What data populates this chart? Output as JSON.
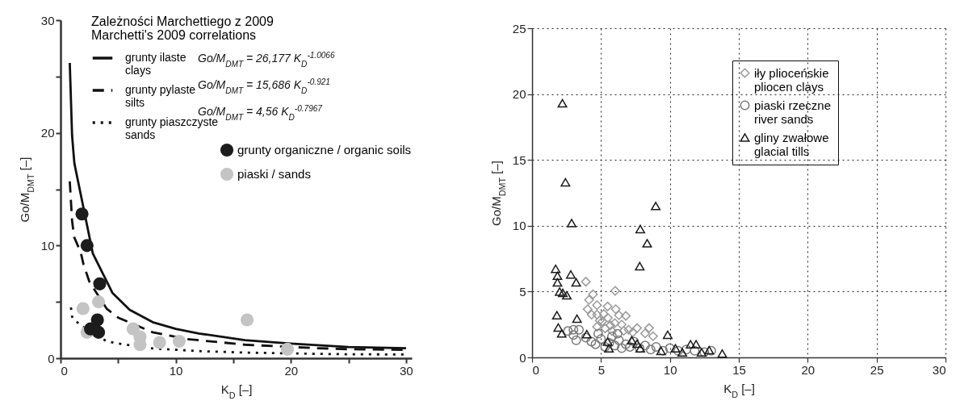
{
  "chart_data": [
    {
      "type": "scatter",
      "xlabel": "K$_{D}$ [–]",
      "ylabel": "Go/M$_{DMT}$ [–]",
      "legend_title": "Zależności Marchettiego z 2009\nMarchetti's 2009 correlations",
      "legend": "top right",
      "xlim": [
        0,
        30.5
      ],
      "ylim": [
        0,
        30
      ],
      "xticks": [
        0,
        {
          "value": 5,
          "label": null
        },
        10,
        {
          "value": 15,
          "label": null
        },
        20,
        {
          "value": 25,
          "label": null
        },
        30
      ],
      "yticks": [
        0,
        {
          "value": 5,
          "label": null
        },
        10,
        {
          "value": 15,
          "label": null
        },
        20,
        {
          "value": 25,
          "label": null
        },
        30
      ],
      "annotations": [
        "Go/M$_{DMT}$ = 26,177 K$_{D}$$^{-1.0066}$",
        "Go/M$_{DMT}$ = 15,686 K$_{D}$$^{-0.921}$",
        "Go/M$_{DMT}$ = 4,56 K$_{D}$$^{-0.7967}$"
      ],
      "series": [
        {
          "name": "grunty ilaste\nclays",
          "type": "line",
          "line_style": "solid",
          "color": "#111111",
          "x": [
            0.8,
            1,
            1.1,
            1.2,
            2.8,
            4.5,
            6,
            8,
            10,
            12,
            16,
            20,
            25,
            30
          ],
          "values": [
            26.2,
            19.8,
            18.5,
            17.3,
            9.3,
            5.8,
            4.3,
            3.2,
            2.6,
            2.2,
            1.6,
            1.3,
            1.0,
            0.89
          ]
        },
        {
          "name": "grunty pylaste\nsilts",
          "type": "line",
          "line_style": "dashed",
          "color": "#111111",
          "x": [
            0.8,
            1,
            1.1,
            1.2,
            1.75,
            2,
            2.5,
            4,
            5,
            8,
            11,
            12,
            16,
            22,
            25,
            30
          ],
          "values": [
            15.7,
            12.2,
            11.4,
            10.7,
            9.4,
            8.3,
            6.8,
            4.4,
            3.6,
            2.3,
            1.7,
            1.6,
            1.2,
            0.9,
            0.8,
            0.74
          ]
        },
        {
          "name": "grunty piaszczyste\nsands",
          "type": "line",
          "line_style": "dotted",
          "color": "#111111",
          "x": [
            0.9,
            1,
            1.1,
            1.75,
            4,
            5,
            8,
            12,
            16,
            22,
            25,
            30
          ],
          "values": [
            4.5,
            3.7,
            3.5,
            2.92,
            1.5,
            1.3,
            0.87,
            0.63,
            0.5,
            0.39,
            0.35,
            0.33
          ]
        },
        {
          "name": "grunty organiczne / organic soils",
          "marker": "circle",
          "color": "#1c1c1c",
          "x": [
            1.86,
            2.3,
            3.4,
            3.2,
            2.6,
            3.3
          ],
          "values": [
            12.8,
            10.0,
            6.6,
            3.4,
            2.6,
            2.3
          ]
        },
        {
          "name": "piaski / sands",
          "marker": "circle",
          "color": "#c4c4c4",
          "x": [
            1.95,
            3.3,
            2.3,
            6.3,
            6.9,
            6.9,
            8.6,
            10.3,
            16.2,
            19.7
          ],
          "values": [
            4.4,
            5.0,
            2.3,
            2.6,
            1.9,
            1.2,
            1.4,
            1.5,
            3.4,
            0.8
          ]
        }
      ]
    },
    {
      "type": "scatter",
      "xlabel": "K$_{D}$ [–]",
      "ylabel": "Go/M$_{DMT}$ [–]",
      "legend": "top right",
      "grid": true,
      "xlim": [
        0,
        30
      ],
      "ylim": [
        0,
        25
      ],
      "xticks": [
        0,
        5,
        10,
        15,
        20,
        25,
        30
      ],
      "yticks": [
        0,
        5,
        10,
        15,
        20,
        25
      ],
      "series": [
        {
          "name": "iły plioceńskie\npliocen clays",
          "marker": "diamond",
          "color": "#999999",
          "x": [
            3.9,
            6.03,
            4.42,
            4.13,
            4.71,
            4.03,
            5.48,
            6.07,
            6.8,
            4.71,
            5.1,
            5.68,
            7.62,
            8.49,
            8.78,
            8.2,
            6.65,
            4.71,
            4.32,
            5.5,
            6.0,
            5.2,
            6.5,
            7.0,
            5.8,
            4.9,
            6.3,
            7.3,
            5.3
          ],
          "values": [
            5.75,
            5.05,
            4.79,
            4.37,
            3.97,
            3.66,
            3.87,
            3.66,
            3.15,
            3.25,
            2.74,
            2.43,
            2.23,
            2.23,
            1.61,
            1.82,
            2.02,
            2.33,
            3.25,
            3.0,
            2.6,
            3.3,
            2.5,
            2.1,
            2.0,
            2.8,
            3.2,
            1.9,
            2.2
          ]
        },
        {
          "name": "piaski rzeczne\nriver sands",
          "marker": "circle",
          "color": "#7a7a7a",
          "x": [
            2.6,
            3.0,
            3.4,
            3.2,
            3.9,
            4.3,
            4.6,
            5.0,
            5.3,
            5.6,
            6.0,
            6.3,
            6.5,
            6.8,
            7.1,
            7.4,
            7.8,
            8.2,
            8.6,
            9.0,
            9.5,
            10.0,
            10.6,
            11.2,
            11.8,
            12.5,
            13.0,
            5.8,
            6.2,
            4.8,
            3.0
          ],
          "values": [
            2.0,
            1.7,
            2.1,
            1.3,
            1.5,
            1.2,
            1.0,
            1.4,
            0.8,
            1.1,
            0.9,
            1.3,
            0.7,
            1.0,
            0.8,
            1.2,
            0.7,
            0.9,
            0.6,
            0.8,
            0.5,
            0.7,
            0.5,
            0.6,
            0.5,
            0.4,
            0.5,
            1.6,
            1.8,
            1.8,
            2.1
          ]
        },
        {
          "name": "gliny zwałowe\nglacial tills",
          "marker": "triangle",
          "color": "#1a1a1a",
          "x": [
            2.2,
            2.42,
            2.87,
            8.97,
            7.85,
            8.35,
            7.81,
            1.71,
            1.84,
            2.81,
            3.2,
            1.84,
            2.0,
            2.23,
            2.52,
            1.8,
            3.26,
            1.9,
            2.15,
            3.97,
            5.48,
            5.58,
            7.23,
            7.62,
            7.85,
            9.84,
            9.36,
            10.4,
            10.9,
            11.5,
            11.9,
            12.3,
            12.85,
            13.8
          ],
          "values": [
            19.3,
            13.3,
            10.2,
            11.5,
            9.75,
            8.67,
            6.93,
            6.73,
            6.2,
            6.3,
            5.7,
            5.7,
            5.0,
            4.9,
            4.72,
            3.2,
            2.94,
            2.27,
            1.82,
            1.76,
            1.2,
            0.69,
            1.3,
            1.04,
            0.69,
            1.72,
            0.49,
            0.69,
            0.39,
            1.0,
            1.0,
            0.39,
            0.55,
            0.29
          ]
        }
      ]
    }
  ]
}
